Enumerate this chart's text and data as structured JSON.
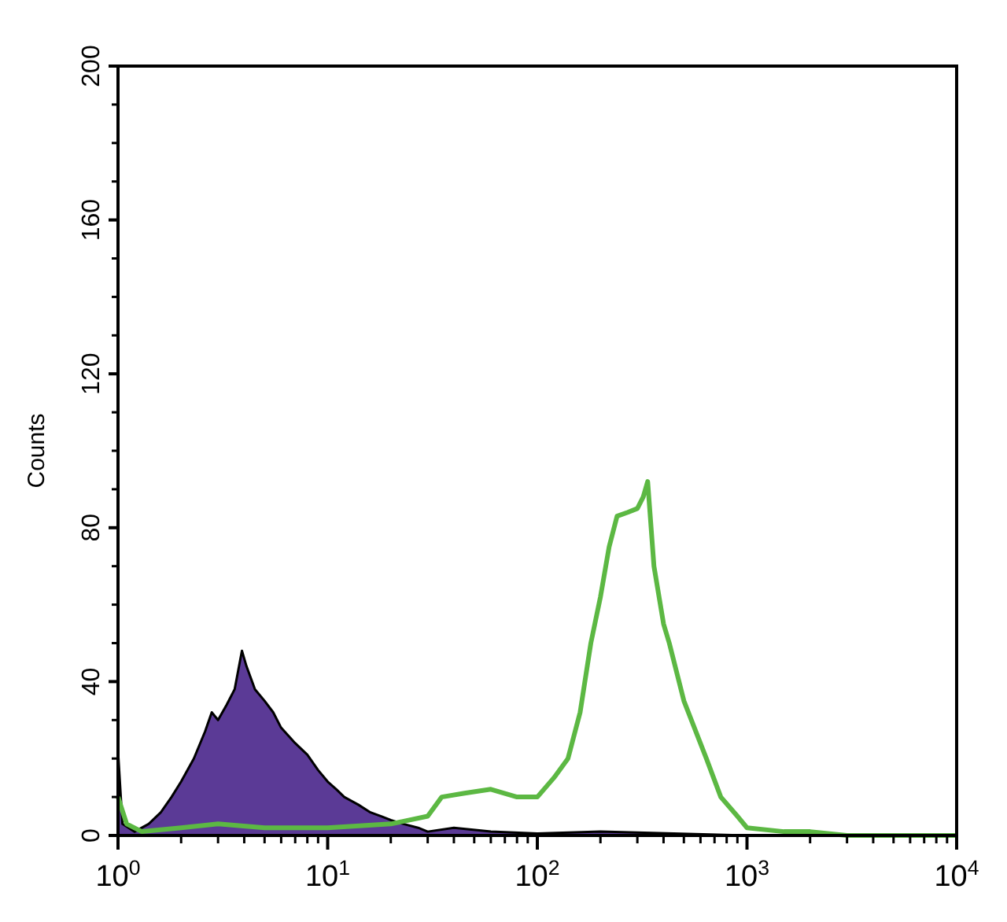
{
  "chart_data": {
    "type": "area",
    "ylabel": "Counts",
    "log": "x",
    "xlim": [
      1,
      10000
    ],
    "ylim": [
      0,
      200
    ],
    "xticks": [
      {
        "value": 1,
        "label": "10$^{0}$"
      },
      {
        "value": 10,
        "label": "10$^{1}$"
      },
      {
        "value": 100,
        "label": "10$^{2}$"
      },
      {
        "value": 1000,
        "label": "10$^{3}$"
      },
      {
        "value": 10000,
        "label": "10$^{4}$"
      }
    ],
    "yticks": [
      0,
      40,
      80,
      120,
      160,
      200
    ],
    "series": [
      {
        "color": "#5b3a96",
        "x": [
          1,
          1.05,
          1.2,
          1.4,
          1.6,
          1.8,
          2,
          2.3,
          2.6,
          2.8,
          3,
          3.3,
          3.6,
          3.9,
          4.1,
          4.5,
          5,
          5.5,
          6,
          7,
          8,
          9,
          10,
          11,
          12,
          14,
          16,
          18,
          20,
          23,
          27,
          30,
          40,
          60,
          100,
          200,
          1000,
          10000
        ],
        "values": [
          22,
          3,
          1,
          3,
          6,
          10,
          14,
          20,
          27,
          32,
          30,
          34,
          38,
          48,
          44,
          38,
          35,
          32,
          28,
          24,
          21,
          17,
          14,
          12,
          10,
          8,
          6,
          5,
          4,
          3,
          2,
          1,
          2,
          1,
          0.5,
          1,
          0,
          0
        ]
      },
      {
        "type": "line",
        "color": "#5cb843",
        "x": [
          1,
          1.1,
          1.3,
          2,
          3,
          5,
          10,
          20,
          30,
          35,
          45,
          60,
          80,
          100,
          120,
          140,
          160,
          180,
          200,
          220,
          240,
          270,
          300,
          320,
          336,
          360,
          400,
          426,
          500,
          640,
          750,
          900,
          1000,
          1500,
          2000,
          3000,
          10000
        ],
        "values": [
          10,
          3,
          1,
          2,
          3,
          2,
          2,
          3,
          5,
          10,
          11,
          12,
          10,
          10,
          15,
          20,
          32,
          50,
          62,
          75,
          83,
          84,
          85,
          88,
          92,
          70,
          55,
          50,
          35,
          20,
          10,
          5,
          2,
          1,
          1,
          0,
          0
        ]
      }
    ]
  }
}
